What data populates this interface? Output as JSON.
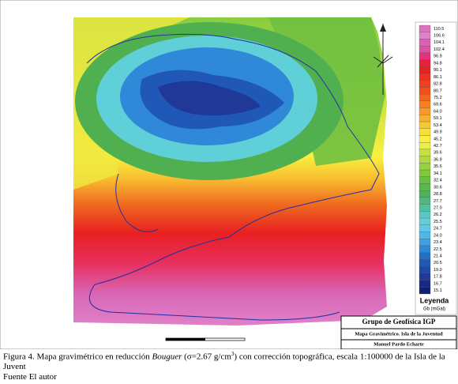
{
  "figure": {
    "legend": {
      "title": "Leyenda",
      "unit": "Gb (mGal)",
      "items": [
        {
          "label": "110.5",
          "color": "#e070c0"
        },
        {
          "label": "106.6",
          "color": "#e080c8"
        },
        {
          "label": "104.1",
          "color": "#d860b8"
        },
        {
          "label": "102.4",
          "color": "#e050a0"
        },
        {
          "label": "96.9",
          "color": "#e83080"
        },
        {
          "label": "94.8",
          "color": "#e82040"
        },
        {
          "label": "90.1",
          "color": "#e82020"
        },
        {
          "label": "86.1",
          "color": "#f03020"
        },
        {
          "label": "82.8",
          "color": "#f04020"
        },
        {
          "label": "80.7",
          "color": "#f05020"
        },
        {
          "label": "75.2",
          "color": "#f06820"
        },
        {
          "label": "69.6",
          "color": "#f88020"
        },
        {
          "label": "64.0",
          "color": "#f89828"
        },
        {
          "label": "59.1",
          "color": "#f8b030"
        },
        {
          "label": "53.4",
          "color": "#f8c830"
        },
        {
          "label": "49.9",
          "color": "#f8e038"
        },
        {
          "label": "45.2",
          "color": "#f8f040"
        },
        {
          "label": "42.7",
          "color": "#e8f040"
        },
        {
          "label": "39.6",
          "color": "#c8e040"
        },
        {
          "label": "36.9",
          "color": "#b0d840"
        },
        {
          "label": "35.6",
          "color": "#98d040"
        },
        {
          "label": "34.1",
          "color": "#80c840"
        },
        {
          "label": "32.4",
          "color": "#68c040"
        },
        {
          "label": "30.6",
          "color": "#58b848"
        },
        {
          "label": "28.8",
          "color": "#50b060"
        },
        {
          "label": "27.7",
          "color": "#50b880"
        },
        {
          "label": "27.0",
          "color": "#50c0a0"
        },
        {
          "label": "26.2",
          "color": "#58c8c0"
        },
        {
          "label": "25.5",
          "color": "#60d0d8"
        },
        {
          "label": "24.7",
          "color": "#60c8e8"
        },
        {
          "label": "24.0",
          "color": "#50b8e8"
        },
        {
          "label": "23.4",
          "color": "#40a0e0"
        },
        {
          "label": "22.5",
          "color": "#3088d8"
        },
        {
          "label": "21.4",
          "color": "#2070c8"
        },
        {
          "label": "20.5",
          "color": "#2058b8"
        },
        {
          "label": "19.0",
          "color": "#2048a8"
        },
        {
          "label": "17.8",
          "color": "#203898"
        },
        {
          "label": "16.7",
          "color": "#182888"
        },
        {
          "label": "15.1",
          "color": "#102070"
        }
      ]
    },
    "title_block": {
      "org": "Grupo de Geofísica IGP",
      "map": "Mapa Gravimétrico. Isla de la Juventud",
      "author": "Manuel Pardo Echarte"
    },
    "caption": {
      "parts": [
        "Figura 4. Mapa gravimétrico en reducción ",
        "Bouguer",
        " (σ=2.67 g/cm",
        "3",
        ") con corrección topográfica, escala 1:100000 de la Isla de la Juvent"
      ],
      "source": "Fuente El autor"
    }
  }
}
